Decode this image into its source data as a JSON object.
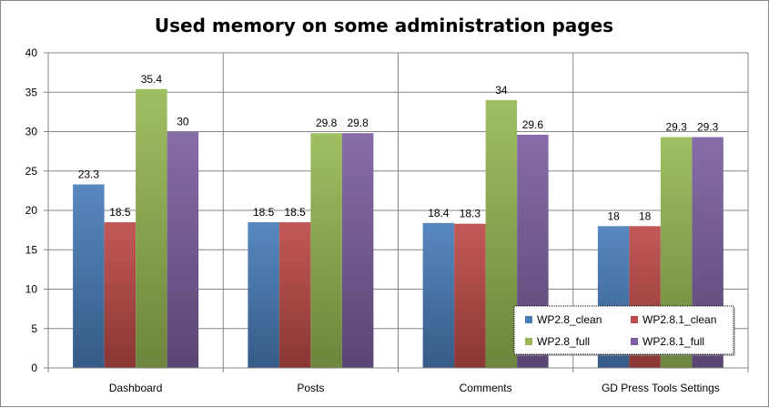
{
  "chart_data": {
    "type": "bar",
    "title": "Used memory on some administration pages",
    "xlabel": "",
    "ylabel": "",
    "categories": [
      "Dashboard",
      "Posts",
      "Comments",
      "GD Press Tools Settings"
    ],
    "series": [
      {
        "name": "WP2.8_clean",
        "color": "#4a7ebb",
        "values": [
          23.3,
          18.5,
          18.4,
          18
        ]
      },
      {
        "name": "WP2.8.1_clean",
        "color": "#be4b48",
        "values": [
          18.5,
          18.5,
          18.3,
          18
        ]
      },
      {
        "name": "WP2.8_full",
        "color": "#98b954",
        "values": [
          35.4,
          29.8,
          34,
          29.3
        ]
      },
      {
        "name": "WP2.8.1_full",
        "color": "#7d60a0",
        "values": [
          30,
          29.8,
          29.6,
          29.3
        ]
      }
    ],
    "ylim": [
      0,
      40
    ],
    "yticks": [
      0,
      5,
      10,
      15,
      20,
      25,
      30,
      35,
      40
    ],
    "grid": "horizontal",
    "legend_position": "bottom-right inside plot"
  }
}
